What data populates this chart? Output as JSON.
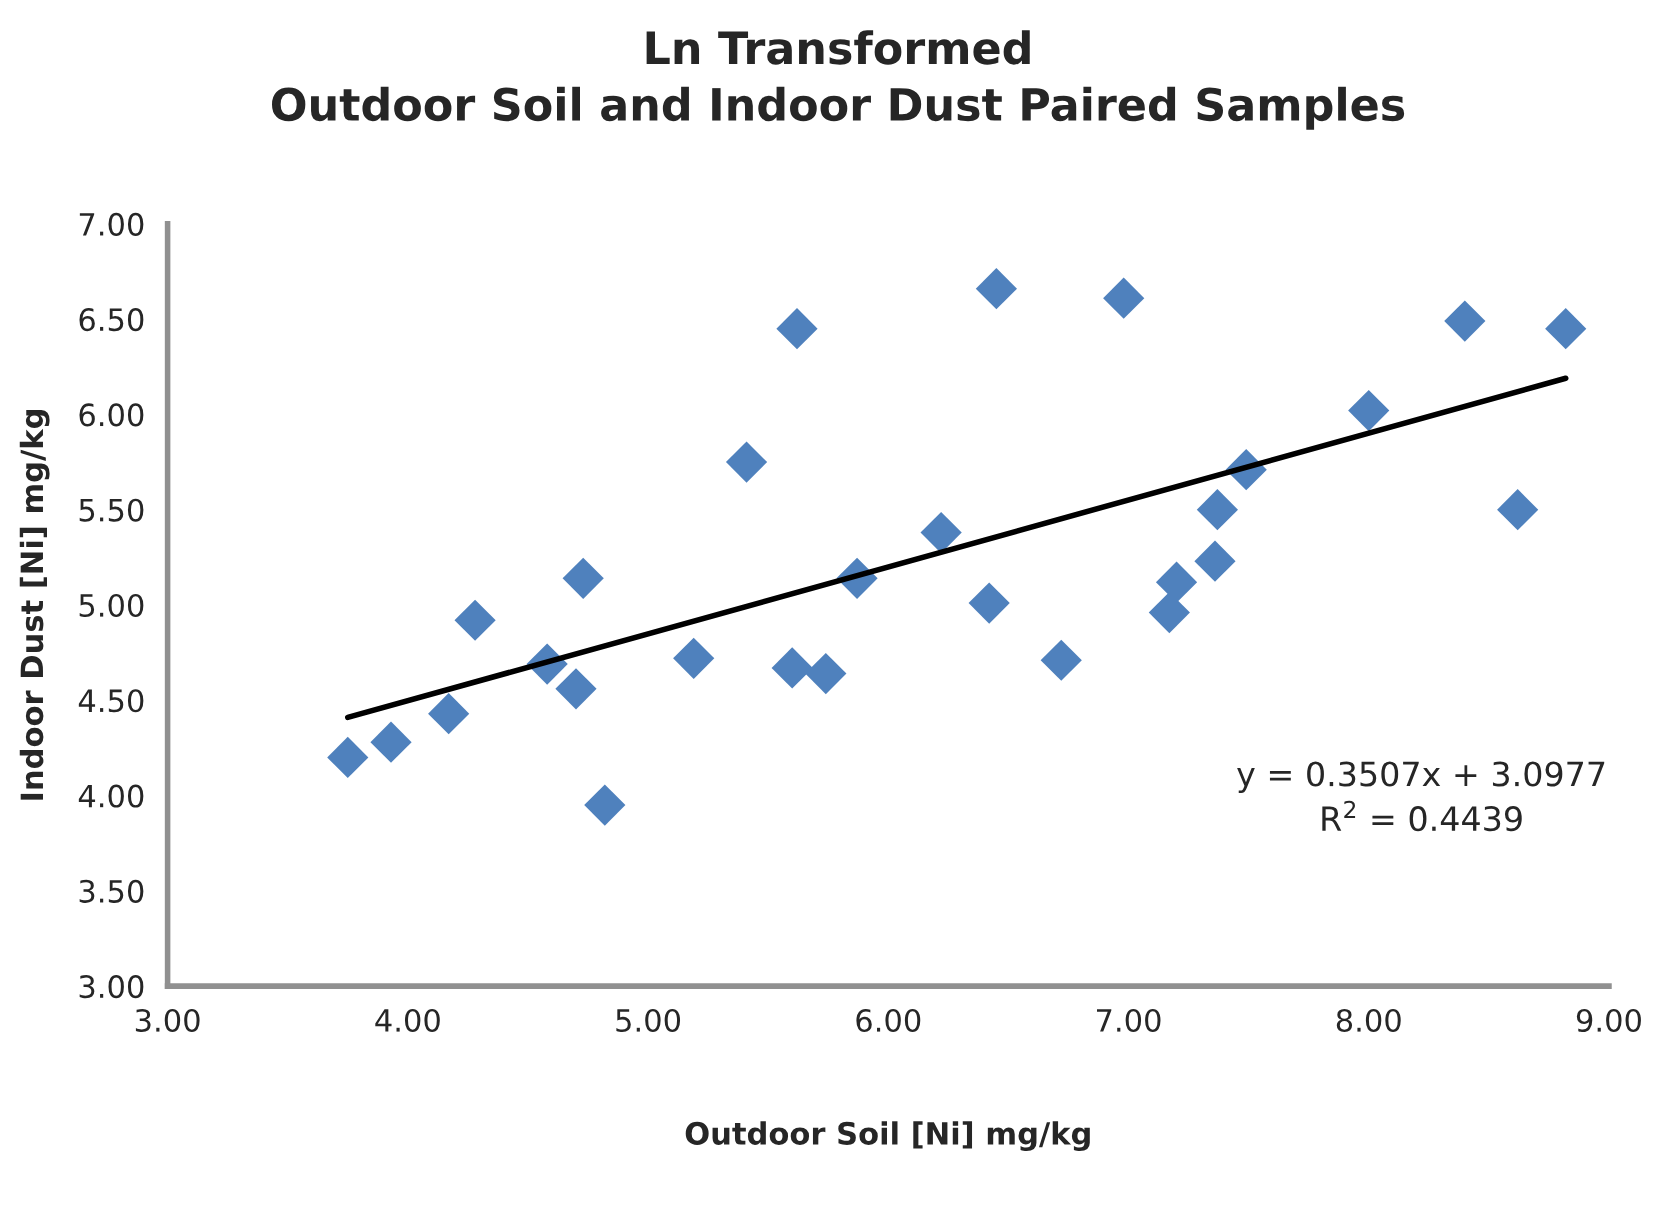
{
  "chart_data": {
    "type": "scatter",
    "title": "Ln Transformed\nOutdoor Soil and Indoor Dust Paired Samples",
    "xlabel": "Outdoor Soil [Ni] mg/kg",
    "ylabel": "Indoor Dust [Ni] mg/kg",
    "series": [
      {
        "color": "#4f81bd",
        "marker": "diamond",
        "x": [
          3.75,
          3.93,
          4.17,
          4.28,
          4.58,
          4.7,
          4.73,
          4.82,
          5.19,
          5.41,
          5.6,
          5.62,
          5.74,
          5.87,
          6.22,
          6.42,
          6.45,
          6.72,
          6.98,
          7.17,
          7.2,
          7.36,
          7.37,
          7.49,
          8.0,
          8.4,
          8.62,
          8.82
        ],
        "values": [
          4.2,
          4.28,
          4.43,
          4.92,
          4.69,
          4.56,
          5.14,
          3.95,
          4.72,
          5.75,
          4.67,
          6.45,
          4.64,
          5.14,
          5.38,
          5.01,
          6.66,
          4.71,
          6.61,
          4.96,
          5.12,
          5.23,
          5.5,
          5.71,
          6.02,
          6.49,
          5.5,
          6.45
        ]
      },
      {
        "type": "line",
        "color": "#000000",
        "marker": "none",
        "x": [
          3.75,
          8.82
        ],
        "values": [
          4.41,
          6.19
        ]
      }
    ],
    "annotations": [
      "y = 0.3507x + 3.0977\nR$^{2}$ = 0.4439"
    ],
    "xlim": [
      3,
      9
    ],
    "ylim": [
      3,
      7
    ],
    "xticks": [
      {
        "value": 3,
        "label": "3.00"
      },
      {
        "value": 4,
        "label": "4.00"
      },
      {
        "value": 5,
        "label": "5.00"
      },
      {
        "value": 6,
        "label": "6.00"
      },
      {
        "value": 7,
        "label": "7.00"
      },
      {
        "value": 8,
        "label": "8.00"
      },
      {
        "value": 9,
        "label": "9.00"
      }
    ],
    "yticks": [
      {
        "value": 3,
        "label": "3.00"
      },
      {
        "value": 3.5,
        "label": "3.50"
      },
      {
        "value": 4,
        "label": "4.00"
      },
      {
        "value": 4.5,
        "label": "4.50"
      },
      {
        "value": 5,
        "label": "5.00"
      },
      {
        "value": 5.5,
        "label": "5.50"
      },
      {
        "value": 6,
        "label": "6.00"
      },
      {
        "value": 6.5,
        "label": "6.50"
      },
      {
        "value": 7,
        "label": "7.00"
      }
    ],
    "grid": false
  }
}
